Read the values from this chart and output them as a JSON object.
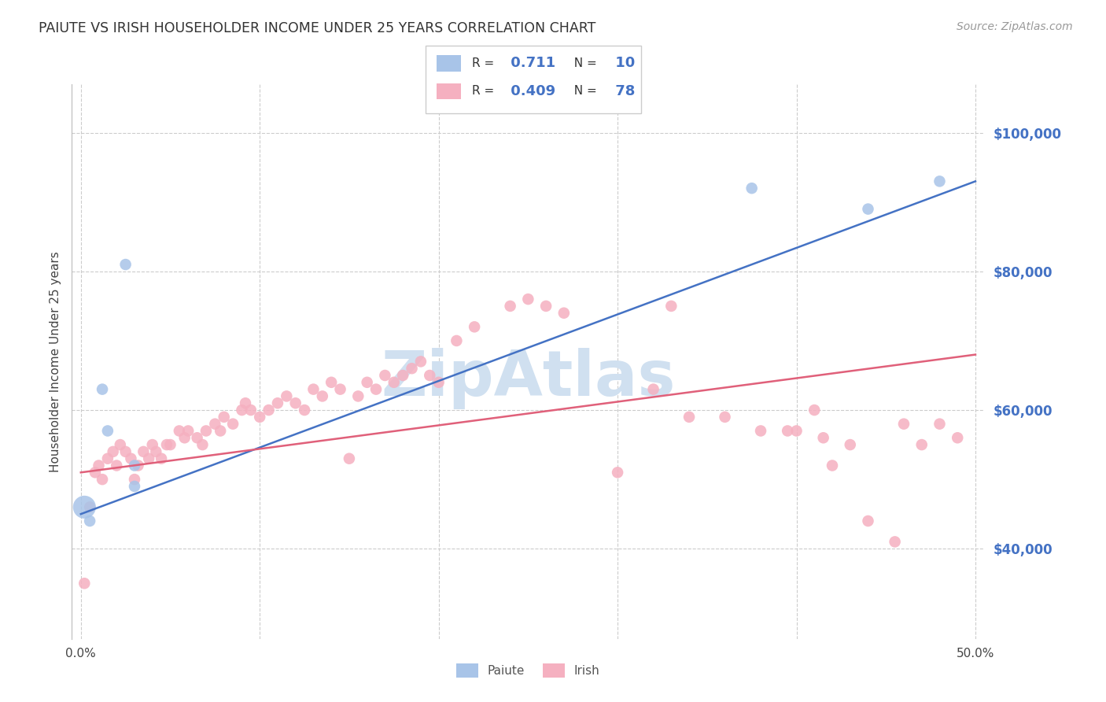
{
  "title": "PAIUTE VS IRISH HOUSEHOLDER INCOME UNDER 25 YEARS CORRELATION CHART",
  "source": "Source: ZipAtlas.com",
  "ylabel": "Householder Income Under 25 years",
  "xlim": [
    -0.005,
    0.505
  ],
  "ylim": [
    27000,
    107000
  ],
  "xtick_labels": [
    "0.0%",
    "50.0%"
  ],
  "xtick_values": [
    0.0,
    0.5
  ],
  "ytick_labels": [
    "$40,000",
    "$60,000",
    "$80,000",
    "$100,000"
  ],
  "ytick_values": [
    40000,
    60000,
    80000,
    100000
  ],
  "grid_color": "#cccccc",
  "background_color": "#ffffff",
  "paiute_color": "#a8c4e8",
  "irish_color": "#f5b0c0",
  "paiute_line_color": "#4472c4",
  "irish_line_color": "#e0607a",
  "watermark_color": "#d0e0f0",
  "legend_r_paiute": "0.711",
  "legend_n_paiute": "10",
  "legend_r_irish": "0.409",
  "legend_n_irish": "78",
  "paiute_x": [
    0.002,
    0.005,
    0.012,
    0.015,
    0.025,
    0.03,
    0.03,
    0.375,
    0.44,
    0.48
  ],
  "paiute_y": [
    46000,
    44000,
    63000,
    57000,
    81000,
    49000,
    52000,
    92000,
    89000,
    93000
  ],
  "paiute_size_mult": [
    4.0,
    1.0,
    1.0,
    1.0,
    1.0,
    1.0,
    1.0,
    1.0,
    1.0,
    1.0
  ],
  "irish_x": [
    0.002,
    0.005,
    0.008,
    0.01,
    0.012,
    0.015,
    0.018,
    0.02,
    0.022,
    0.025,
    0.028,
    0.03,
    0.032,
    0.035,
    0.038,
    0.04,
    0.042,
    0.045,
    0.048,
    0.05,
    0.055,
    0.058,
    0.06,
    0.065,
    0.068,
    0.07,
    0.075,
    0.078,
    0.08,
    0.085,
    0.09,
    0.092,
    0.095,
    0.1,
    0.105,
    0.11,
    0.115,
    0.12,
    0.125,
    0.13,
    0.135,
    0.14,
    0.145,
    0.15,
    0.155,
    0.16,
    0.165,
    0.17,
    0.175,
    0.18,
    0.185,
    0.19,
    0.195,
    0.2,
    0.21,
    0.22,
    0.24,
    0.25,
    0.26,
    0.27,
    0.3,
    0.32,
    0.33,
    0.34,
    0.36,
    0.38,
    0.395,
    0.4,
    0.41,
    0.415,
    0.42,
    0.43,
    0.44,
    0.455,
    0.46,
    0.47,
    0.48,
    0.49
  ],
  "irish_y": [
    35000,
    46000,
    51000,
    52000,
    50000,
    53000,
    54000,
    52000,
    55000,
    54000,
    53000,
    50000,
    52000,
    54000,
    53000,
    55000,
    54000,
    53000,
    55000,
    55000,
    57000,
    56000,
    57000,
    56000,
    55000,
    57000,
    58000,
    57000,
    59000,
    58000,
    60000,
    61000,
    60000,
    59000,
    60000,
    61000,
    62000,
    61000,
    60000,
    63000,
    62000,
    64000,
    63000,
    53000,
    62000,
    64000,
    63000,
    65000,
    64000,
    65000,
    66000,
    67000,
    65000,
    64000,
    70000,
    72000,
    75000,
    76000,
    75000,
    74000,
    51000,
    63000,
    75000,
    59000,
    59000,
    57000,
    57000,
    57000,
    60000,
    56000,
    52000,
    55000,
    44000,
    41000,
    58000,
    55000,
    58000,
    56000
  ],
  "paiute_line_x0": 0.0,
  "paiute_line_y0": 45000,
  "paiute_line_x1": 0.5,
  "paiute_line_y1": 93000,
  "irish_line_x0": 0.0,
  "irish_line_y0": 51000,
  "irish_line_x1": 0.5,
  "irish_line_y1": 68000
}
